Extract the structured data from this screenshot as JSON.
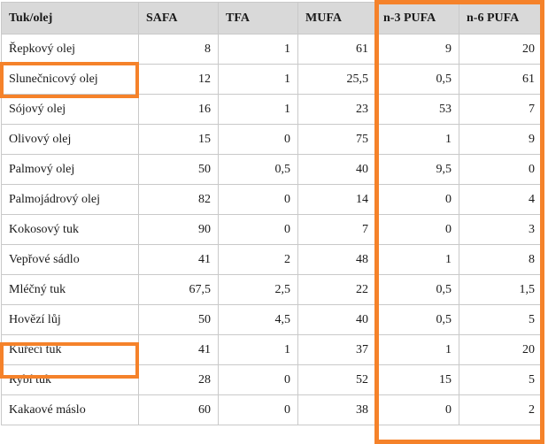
{
  "table": {
    "headers": [
      "Tuk/olej",
      "SAFA",
      "TFA",
      "MUFA",
      "n-3 PUFA",
      "n-6 PUFA"
    ],
    "rows": [
      [
        "Řepkový olej",
        "8",
        "1",
        "61",
        "9",
        "20"
      ],
      [
        "Slunečnicový olej",
        "12",
        "1",
        "25,5",
        "0,5",
        "61"
      ],
      [
        "Sójový olej",
        "16",
        "1",
        "23",
        "53",
        "7"
      ],
      [
        "Olivový olej",
        "15",
        "0",
        "75",
        "1",
        "9"
      ],
      [
        "Palmový olej",
        "50",
        "0,5",
        "40",
        "9,5",
        "0"
      ],
      [
        "Palmojádrový olej",
        "82",
        "0",
        "14",
        "0",
        "4"
      ],
      [
        "Kokosový tuk",
        "90",
        "0",
        "7",
        "0",
        "3"
      ],
      [
        "Vepřové sádlo",
        "41",
        "2",
        "48",
        "1",
        "8"
      ],
      [
        "Mléčný tuk",
        "67,5",
        "2,5",
        "22",
        "0,5",
        "1,5"
      ],
      [
        "Hovězí lůj",
        "50",
        "4,5",
        "40",
        "0,5",
        "5"
      ],
      [
        "Kuřecí tuk",
        "41",
        "1",
        "37",
        "1",
        "20"
      ],
      [
        "Rybí tuk",
        "28",
        "0",
        "52",
        "15",
        "5"
      ],
      [
        "Kakaové máslo",
        "60",
        "0",
        "38",
        "0",
        "2"
      ]
    ]
  },
  "highlights": {
    "color": "#f5822a",
    "rows": [
      "Slunečnicový olej",
      "Kuřecí tuk"
    ],
    "columns": [
      "n-3 PUFA",
      "n-6 PUFA"
    ]
  }
}
